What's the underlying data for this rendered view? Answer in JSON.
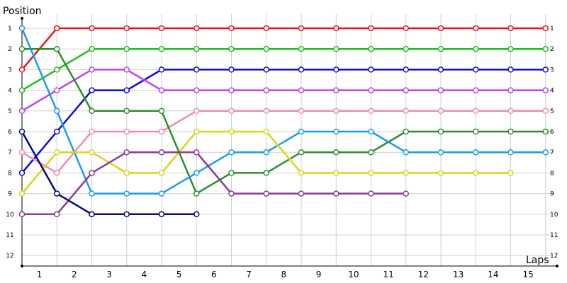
{
  "chart_data": {
    "type": "line",
    "ylabel": "Position",
    "xlabel": "Laps",
    "x_ticks": [
      "1",
      "2",
      "3",
      "4",
      "5",
      "6",
      "7",
      "8",
      "9",
      "10",
      "11",
      "12",
      "13",
      "14",
      "15"
    ],
    "y_ticks": [
      "1",
      "2",
      "3",
      "4",
      "5",
      "6",
      "7",
      "8",
      "9",
      "10",
      "11",
      "12"
    ],
    "right_ticks": [
      "1",
      "2",
      "3",
      "4",
      "5",
      "6",
      "7",
      "8",
      "9",
      "10",
      "11",
      "12"
    ],
    "ylim": [
      12,
      1
    ],
    "grid": true,
    "y_inverted": true,
    "series": [
      {
        "color": "#ee1111",
        "values": [
          3,
          1,
          1,
          1,
          1,
          1,
          1,
          1,
          1,
          1,
          1,
          1,
          1,
          1,
          1,
          1
        ]
      },
      {
        "color": "#22bb22",
        "values": [
          4,
          3,
          2,
          2,
          2,
          2,
          2,
          2,
          2,
          2,
          2,
          2,
          2,
          2,
          2,
          2
        ]
      },
      {
        "color": "#0b0bcc",
        "values": [
          8,
          6,
          4,
          4,
          3,
          3,
          3,
          3,
          3,
          3,
          3,
          3,
          3,
          3,
          3,
          3
        ]
      },
      {
        "color": "#bb44ee",
        "values": [
          5,
          4,
          3,
          3,
          4,
          4,
          4,
          4,
          4,
          4,
          4,
          4,
          4,
          4,
          4,
          4
        ]
      },
      {
        "color": "#f28ab4",
        "values": [
          7,
          8,
          6,
          6,
          6,
          5,
          5,
          5,
          5,
          5,
          5,
          5,
          5,
          5,
          5,
          5
        ]
      },
      {
        "color": "#2a8f2a",
        "values": [
          2,
          2,
          5,
          5,
          5,
          9,
          8,
          8,
          7,
          7,
          7,
          6,
          6,
          6,
          6,
          6
        ]
      },
      {
        "color": "#1e9be8",
        "values": [
          1,
          5,
          9,
          9,
          9,
          8,
          7,
          7,
          6,
          6,
          6,
          7,
          7,
          7,
          7,
          7
        ]
      },
      {
        "color": "#d6d61a",
        "values": [
          9,
          7,
          7,
          8,
          8,
          6,
          6,
          6,
          8,
          8,
          8,
          8,
          8,
          8,
          8
        ]
      },
      {
        "color": "#8e3a96",
        "values": [
          10,
          10,
          8,
          7,
          7,
          7,
          9,
          9,
          9,
          9,
          9,
          9
        ]
      },
      {
        "color": "#08087a",
        "values": [
          6,
          9,
          10,
          10,
          10,
          10
        ]
      }
    ]
  }
}
